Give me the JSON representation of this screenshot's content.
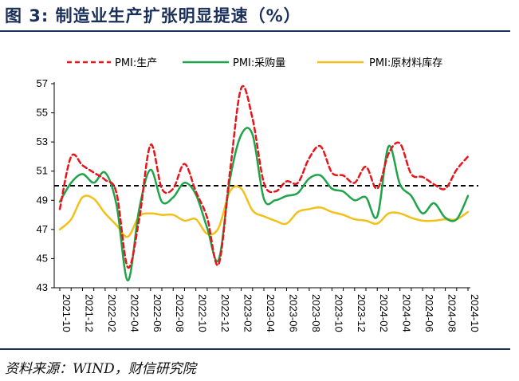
{
  "header": {
    "title": "图 3:  制造业生产扩张明显提速（%）"
  },
  "footer": {
    "source": "资料来源：WIND，财信研究院"
  },
  "colors": {
    "production": "#e8141b",
    "purchase": "#1fa44a",
    "raw_inventory": "#f2c018",
    "reference": "#000000",
    "title": "#1a2f5a"
  },
  "chart_data": {
    "type": "line",
    "title": "",
    "xlabel": "",
    "ylabel": "",
    "ylim": [
      43,
      57
    ],
    "yticks": [
      43,
      45,
      47,
      49,
      51,
      53,
      55,
      57
    ],
    "reference_line": 50,
    "legend_position": "top",
    "x": [
      "2021-10",
      "2021-11",
      "2021-12",
      "2022-01",
      "2022-02",
      "2022-03",
      "2022-04",
      "2022-05",
      "2022-06",
      "2022-07",
      "2022-08",
      "2022-09",
      "2022-10",
      "2022-11",
      "2022-12",
      "2023-01",
      "2023-02",
      "2023-03",
      "2023-04",
      "2023-05",
      "2023-06",
      "2023-07",
      "2023-08",
      "2023-09",
      "2023-10",
      "2023-11",
      "2023-12",
      "2024-01",
      "2024-02",
      "2024-03",
      "2024-04",
      "2024-05",
      "2024-06",
      "2024-07",
      "2024-08",
      "2024-09",
      "2024-10"
    ],
    "xtick_labels": [
      "2021-10",
      "2021-12",
      "2022-02",
      "2022-04",
      "2022-06",
      "2022-08",
      "2022-10",
      "2022-12",
      "2023-02",
      "2023-04",
      "2023-06",
      "2023-08",
      "2023-10",
      "2023-12",
      "2024-02",
      "2024-04",
      "2024-06",
      "2024-08",
      "2024-10"
    ],
    "series": [
      {
        "name": "PMI:生产",
        "style": "dashed",
        "values": [
          48.4,
          52.0,
          51.4,
          50.9,
          50.4,
          49.5,
          44.4,
          47.7,
          52.8,
          49.8,
          49.8,
          51.5,
          49.6,
          47.8,
          44.6,
          50.9,
          56.7,
          54.6,
          50.2,
          49.6,
          50.3,
          50.2,
          51.9,
          52.7,
          50.9,
          50.7,
          50.2,
          51.3,
          49.8,
          52.2,
          52.9,
          50.8,
          50.6,
          50.1,
          49.8,
          51.1,
          52.0
        ]
      },
      {
        "name": "PMI:采购量",
        "style": "solid",
        "values": [
          48.9,
          50.2,
          50.8,
          50.2,
          50.9,
          48.7,
          43.5,
          48.4,
          51.1,
          48.9,
          49.2,
          50.2,
          49.4,
          47.1,
          44.9,
          50.4,
          53.5,
          53.5,
          49.1,
          49.0,
          49.3,
          49.5,
          50.5,
          50.7,
          49.8,
          49.6,
          49.0,
          49.2,
          47.9,
          52.7,
          50.1,
          49.3,
          48.1,
          48.8,
          47.8,
          47.7,
          49.3
        ]
      },
      {
        "name": "PMI:原材料库存",
        "style": "solid",
        "values": [
          47.0,
          47.7,
          49.2,
          49.1,
          48.1,
          47.3,
          46.5,
          47.9,
          48.1,
          48.0,
          48.0,
          47.6,
          47.7,
          46.7,
          47.1,
          49.6,
          49.8,
          48.3,
          47.9,
          47.6,
          47.4,
          48.2,
          48.4,
          48.5,
          48.2,
          48.0,
          47.7,
          47.6,
          47.4,
          48.1,
          48.1,
          47.8,
          47.6,
          47.6,
          47.7,
          47.7,
          48.2
        ]
      }
    ]
  }
}
